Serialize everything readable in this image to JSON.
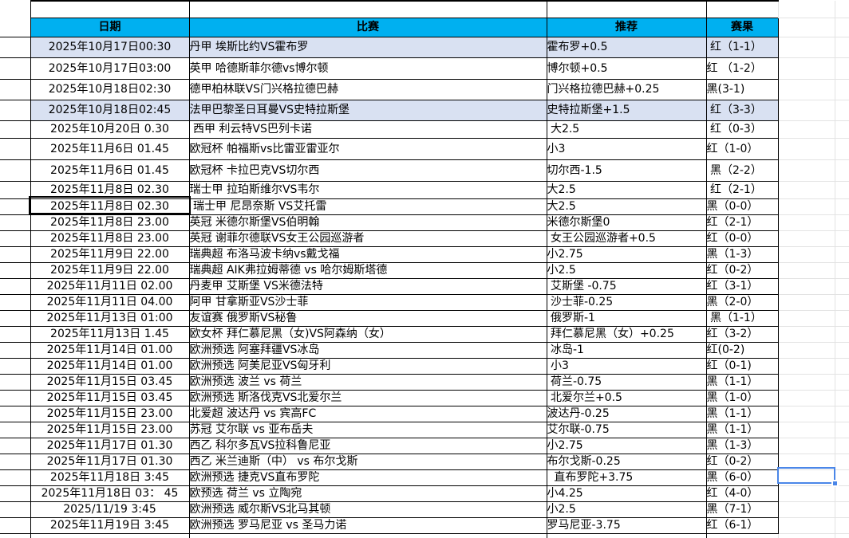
{
  "header": {
    "columns": [
      "日期",
      "比赛",
      "推荐",
      "赛果"
    ]
  },
  "rows": [
    {
      "date": "2025年10月17日00:30",
      "match": "丹甲 埃斯比约VS霍布罗",
      "pick": "霍布罗+0.5",
      "result": " 红（1-1）",
      "result_color": "red",
      "highlight": true
    },
    {
      "date": "2025年10月17日03:00",
      "match": "英甲 哈德斯菲尔德vs博尔顿",
      "pick": "博尔顿+0.5",
      "result": "红 （1-2）",
      "result_color": "red",
      "highlight": false
    },
    {
      "date": "2025年10月18日02:30",
      "match": "德甲柏林联VS门兴格拉德巴赫",
      "pick": "门兴格拉德巴赫+0.25",
      "result": "黑(3-1)",
      "result_color": "black",
      "highlight": false
    },
    {
      "date": "2025年10月18日02:45",
      "match": "法甲巴黎圣日耳曼VS史特拉斯堡",
      "pick": "史特拉斯堡+1.5",
      "result": " 红（3-3）",
      "result_color": "red",
      "highlight": true
    },
    {
      "date": "2025年10月20日 0.30",
      "match": " 西甲 利云特VS巴列卡诺",
      "pick": " 大2.5",
      "result": " 红（0-3）",
      "result_color": "red",
      "highlight": false
    },
    {
      "date": "2025年11月6日 01.45",
      "match": "欧冠杯 帕福斯vs比雷亚雷亚尔",
      "pick": "小3",
      "result": "红（1-0）",
      "result_color": "red",
      "highlight": false
    },
    {
      "date": "2025年11月6日 01.45",
      "match": "欧冠杯 卡拉巴克VS切尔西",
      "pick": "切尔西-1.5",
      "result": " 黑（2-2）",
      "result_color": "black",
      "highlight": false
    },
    {
      "date": "2025年11月8日 02.30",
      "match": "瑞士甲 拉珀斯维尔VS韦尔",
      "pick": "大2.5",
      "result": " 红（2-1）",
      "result_color": "red",
      "highlight": false
    },
    {
      "date": "2025年11月8日 02.30",
      "match": " 瑞士甲 尼昂奈斯 VS艾托雷",
      "pick": "大2.5",
      "result": "黑（0-0）",
      "result_color": "black",
      "highlight": false,
      "date_outlined": true
    },
    {
      "date": "2025年11月8日 23.00",
      "match": "英冠 米德尔斯堡VS伯明翰",
      "pick": "米德尔斯堡0",
      "result": "红（2-1）",
      "result_color": "red",
      "highlight": false
    },
    {
      "date": "2025年11月8日 23.00",
      "match": "英冠 谢菲尔德联VS女王公园巡游者",
      "pick": " 女王公园巡游者+0.5",
      "result": "红（0-0）",
      "result_color": "red",
      "highlight": false
    },
    {
      "date": "2025年11月9日 22.00",
      "match": "瑞典超 布洛马波卡纳vs戴戈福",
      "pick": "小2.75",
      "result": "黑（1-3）",
      "result_color": "black",
      "highlight": false
    },
    {
      "date": "2025年11月9日 22.00",
      "match": "瑞典超 AIK弗拉姆蒂德 vs 哈尔姆斯塔德",
      "pick": "小2.5",
      "result": "红（0-2）",
      "result_color": "red",
      "highlight": false
    },
    {
      "date": "2025年11月11日 02.00",
      "match": "丹麦甲 艾斯堡 VS米德法特",
      "pick": " 艾斯堡 -0.75",
      "result": "红（3-1）",
      "result_color": "red",
      "highlight": false
    },
    {
      "date": "2025年11月11日 04.00",
      "match": "阿甲 甘拿斯亚VS沙士菲",
      "pick": " 沙士菲-0.25",
      "result": "黑（2-0）",
      "result_color": "black",
      "highlight": false
    },
    {
      "date": "2025年11月13日 01:00",
      "match": "友谊赛 俄罗斯VS秘鲁",
      "pick": " 俄罗斯-1",
      "result": " 黑（1-1）",
      "result_color": "black",
      "highlight": false
    },
    {
      "date": "2025年11月13日 1.45",
      "match": "欧女杯 拜仁慕尼黑（女)VS阿森纳（女）",
      "pick": " 拜仁慕尼黑（女）+0.25",
      "result": "红（3-2）",
      "result_color": "red",
      "highlight": false
    },
    {
      "date": "2025年11月14日 01.00",
      "match": "欧洲预选 阿塞拜疆VS冰岛",
      "pick": " 冰岛-1",
      "result": "红(0-2)",
      "result_color": "red",
      "highlight": false
    },
    {
      "date": "2025年11月14日 01.00",
      "match": "欧洲预选 阿美尼亚VS匈牙利",
      "pick": " 小3",
      "result": "红（0-1)",
      "result_color": "red",
      "highlight": false
    },
    {
      "date": "2025年11月15日 03.45",
      "match": "欧洲预选 波兰 vs 荷兰",
      "pick": " 荷兰-0.75",
      "result": "黑（1-1）",
      "result_color": "black",
      "highlight": false
    },
    {
      "date": "2025年11月15日 03.45",
      "match": "欧洲预选 斯洛伐克VS北爱尔兰",
      "pick": " 北爱尔兰+0.5",
      "result": "黑（1-0）",
      "result_color": "black",
      "highlight": false
    },
    {
      "date": "2025年11月15日 23.00",
      "match": "北爱超 波达丹 vs 宾高FC",
      "pick": "波达丹-0.25",
      "result": "黑（1-1）",
      "result_color": "black",
      "highlight": false
    },
    {
      "date": "2025年11月15日 23.00",
      "match": "苏冠 艾尔联 vs 亚布岳夫",
      "pick": "艾尔联-0.75",
      "result": "黑（1-1）",
      "result_color": "black",
      "highlight": false
    },
    {
      "date": "2025年11月17日 01.30",
      "match": "西乙 科尔多瓦VS拉科鲁尼亚",
      "pick": "小2.75",
      "result": "黑（1-3）",
      "result_color": "black",
      "highlight": false
    },
    {
      "date": "2025年11月17日 01.30",
      "match": "西乙 米兰迪斯（中） vs 布尔戈斯",
      "pick": "布尔戈斯-0.25",
      "result": "红（0-2）",
      "result_color": "red",
      "highlight": false
    },
    {
      "date": "2025年11月18日 3:45",
      "match": "欧洲预选 捷克VS直布罗陀",
      "pick": "  直布罗陀+3.75",
      "result": "黑（6-0）",
      "result_color": "black",
      "highlight": false,
      "selected_right_cell": true
    },
    {
      "date": "2025年11月18日 03： 45",
      "match": "欧预选 荷兰 vs 立陶宛",
      "pick": "小4.25",
      "result": "红（4-0）",
      "result_color": "red",
      "highlight": false
    },
    {
      "date": "2025/11/19 3:45",
      "match": "欧洲预选 威尔斯VS北马其顿",
      "pick": "小2.5",
      "result": "黑（7-1）",
      "result_color": "black",
      "highlight": false
    },
    {
      "date": "2025年11月19日 3:45",
      "match": "欧洲预选 罗马尼亚 vs 圣马力诺",
      "pick": "罗马尼亚-3.75",
      "result": "红（6-1）",
      "result_color": "red",
      "highlight": false
    }
  ],
  "colors": {
    "header_bg": "#00B0F0",
    "highlight_row_bg": "#D9E1F2",
    "result_red": "#FF0000",
    "selection_blue": "#4a86e8"
  },
  "state": {
    "outlined_date_row": 9,
    "selected_empty_cell_row": 26
  }
}
